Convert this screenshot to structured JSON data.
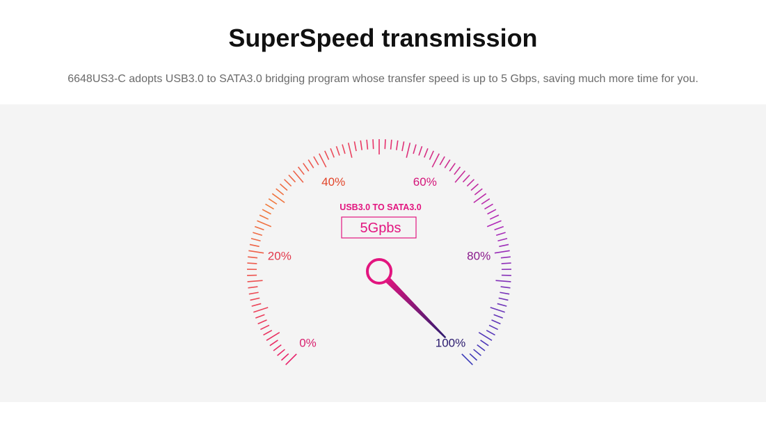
{
  "header": {
    "title": "SuperSpeed transmission",
    "subtitle": "6648US3-C adopts USB3.0 to SATA3.0 bridging program whose transfer speed is up to 5 Gbps, saving much more time for you."
  },
  "gauge": {
    "bridge_label": "USB3.0 TO SATA3.0",
    "speed_label": "5Gpbs",
    "needle_percent": 100,
    "scale_labels": [
      {
        "text": "0%",
        "value": 0,
        "color": "#d8206e"
      },
      {
        "text": "20%",
        "value": 20,
        "color": "#e2384a"
      },
      {
        "text": "40%",
        "value": 40,
        "color": "#e2452a"
      },
      {
        "text": "60%",
        "value": 60,
        "color": "#d4157a"
      },
      {
        "text": "80%",
        "value": 80,
        "color": "#8a1a8c"
      },
      {
        "text": "100%",
        "value": 100,
        "color": "#2a1a6e"
      }
    ],
    "colors": {
      "accent": "#e2157f",
      "tick_start": "#e8206a",
      "tick_mid_low": "#f07a3a",
      "tick_top": "#e8306a",
      "tick_mid_high": "#b02ab8",
      "tick_end": "#3a3ab8",
      "needle_end": "#2a1a6e",
      "panel_bg": "#f4f4f4"
    }
  }
}
